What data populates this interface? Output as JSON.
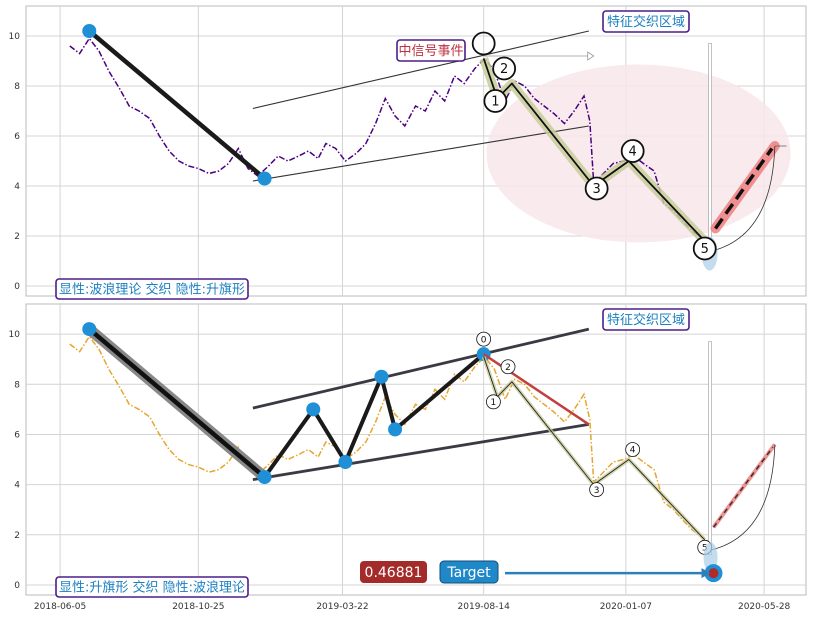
{
  "chart_data": [
    {
      "type": "line",
      "panel": "top",
      "ylim": [
        -0.4,
        11.2
      ],
      "yticks": [
        0,
        2,
        4,
        6,
        8,
        10
      ],
      "grid": true,
      "series": [
        {
          "color": "#4b0082",
          "style": "dash-dot",
          "points": [
            [
              "2018-06-15",
              9.6
            ],
            [
              "2018-06-25",
              9.3
            ],
            [
              "2018-07-05",
              9.9
            ],
            [
              "2018-07-15",
              9.4
            ],
            [
              "2018-07-25",
              8.6
            ],
            [
              "2018-08-05",
              7.9
            ],
            [
              "2018-08-15",
              7.2
            ],
            [
              "2018-08-25",
              7.0
            ],
            [
              "2018-09-05",
              6.7
            ],
            [
              "2018-09-15",
              6.0
            ],
            [
              "2018-09-25",
              5.4
            ],
            [
              "2018-10-05",
              5.0
            ],
            [
              "2018-10-15",
              4.8
            ],
            [
              "2018-10-25",
              4.7
            ],
            [
              "2018-11-05",
              4.5
            ],
            [
              "2018-11-15",
              4.6
            ],
            [
              "2018-11-25",
              4.9
            ],
            [
              "2018-12-05",
              5.5
            ],
            [
              "2018-12-15",
              4.7
            ],
            [
              "2018-12-25",
              4.4
            ],
            [
              "2019-01-05",
              4.8
            ],
            [
              "2019-01-15",
              5.2
            ],
            [
              "2019-01-25",
              5.0
            ],
            [
              "2019-02-05",
              5.2
            ],
            [
              "2019-02-15",
              5.4
            ],
            [
              "2019-02-25",
              5.1
            ],
            [
              "2019-03-05",
              5.7
            ],
            [
              "2019-03-15",
              5.5
            ],
            [
              "2019-03-25",
              5.0
            ],
            [
              "2019-04-05",
              5.3
            ],
            [
              "2019-04-15",
              5.7
            ],
            [
              "2019-04-25",
              6.5
            ],
            [
              "2019-05-05",
              7.5
            ],
            [
              "2019-05-15",
              6.8
            ],
            [
              "2019-05-25",
              6.4
            ],
            [
              "2019-06-05",
              7.2
            ],
            [
              "2019-06-15",
              7.0
            ],
            [
              "2019-06-25",
              7.8
            ],
            [
              "2019-07-05",
              7.4
            ],
            [
              "2019-07-15",
              8.4
            ],
            [
              "2019-07-25",
              8.1
            ],
            [
              "2019-08-05",
              8.7
            ],
            [
              "2019-08-15",
              9.1
            ],
            [
              "2019-08-25",
              8.6
            ],
            [
              "2019-09-05",
              7.4
            ],
            [
              "2019-09-15",
              8.2
            ],
            [
              "2019-09-25",
              8.0
            ],
            [
              "2019-10-05",
              7.5
            ],
            [
              "2019-10-15",
              7.2
            ],
            [
              "2019-10-25",
              6.9
            ],
            [
              "2019-11-05",
              6.5
            ],
            [
              "2019-11-15",
              7.0
            ],
            [
              "2019-11-25",
              7.6
            ],
            [
              "2019-12-01",
              6.6
            ],
            [
              "2019-12-05",
              4.1
            ],
            [
              "2019-12-15",
              4.5
            ],
            [
              "2019-12-25",
              4.9
            ],
            [
              "2020-01-05",
              5.0
            ],
            [
              "2020-01-15",
              5.2
            ],
            [
              "2020-01-25",
              4.9
            ],
            [
              "2020-02-05",
              4.6
            ],
            [
              "2020-02-15",
              3.3
            ],
            [
              "2020-02-25",
              3.0
            ],
            [
              "2020-03-05",
              2.6
            ],
            [
              "2020-03-15",
              2.2
            ],
            [
              "2020-03-25",
              1.9
            ],
            [
              "2020-04-02",
              1.7
            ]
          ]
        }
      ],
      "annotations": {
        "wave_labels": [
          "1",
          "2",
          "3",
          "4",
          "5"
        ],
        "event_label": "中信号事件",
        "zone_label": "特征交织区域",
        "footer_label": "显性:波浪理论 交织 隐性:升旗形"
      }
    },
    {
      "type": "line",
      "panel": "bottom",
      "ylim": [
        -0.4,
        11.2
      ],
      "yticks": [
        0,
        2,
        4,
        6,
        8,
        10
      ],
      "grid": true,
      "xticks": [
        "2018-06-05",
        "2018-10-25",
        "2019-03-22",
        "2019-08-14",
        "2020-01-07",
        "2020-05-28"
      ],
      "series": [
        {
          "color": "#e6a62e",
          "style": "dash-dot",
          "points": [
            [
              "2018-06-15",
              9.6
            ],
            [
              "2018-06-25",
              9.3
            ],
            [
              "2018-07-05",
              9.9
            ],
            [
              "2018-07-15",
              9.4
            ],
            [
              "2018-07-25",
              8.6
            ],
            [
              "2018-08-05",
              7.9
            ],
            [
              "2018-08-15",
              7.2
            ],
            [
              "2018-08-25",
              7.0
            ],
            [
              "2018-09-05",
              6.7
            ],
            [
              "2018-09-15",
              6.0
            ],
            [
              "2018-09-25",
              5.4
            ],
            [
              "2018-10-05",
              5.0
            ],
            [
              "2018-10-15",
              4.8
            ],
            [
              "2018-10-25",
              4.7
            ],
            [
              "2018-11-05",
              4.5
            ],
            [
              "2018-11-15",
              4.6
            ],
            [
              "2018-11-25",
              4.9
            ],
            [
              "2018-12-05",
              5.5
            ],
            [
              "2018-12-15",
              4.7
            ],
            [
              "2018-12-25",
              4.4
            ],
            [
              "2019-01-05",
              4.8
            ],
            [
              "2019-01-15",
              5.2
            ],
            [
              "2019-01-25",
              5.0
            ],
            [
              "2019-02-05",
              5.2
            ],
            [
              "2019-02-15",
              5.4
            ],
            [
              "2019-02-25",
              5.1
            ],
            [
              "2019-03-05",
              5.7
            ],
            [
              "2019-03-15",
              5.5
            ],
            [
              "2019-03-25",
              5.0
            ],
            [
              "2019-04-05",
              5.3
            ],
            [
              "2019-04-15",
              5.7
            ],
            [
              "2019-04-25",
              6.5
            ],
            [
              "2019-05-05",
              7.5
            ],
            [
              "2019-05-15",
              6.8
            ],
            [
              "2019-05-25",
              6.4
            ],
            [
              "2019-06-05",
              7.2
            ],
            [
              "2019-06-15",
              7.0
            ],
            [
              "2019-06-25",
              7.8
            ],
            [
              "2019-07-05",
              7.4
            ],
            [
              "2019-07-15",
              8.4
            ],
            [
              "2019-07-25",
              8.1
            ],
            [
              "2019-08-05",
              8.7
            ],
            [
              "2019-08-15",
              9.1
            ],
            [
              "2019-08-25",
              8.6
            ],
            [
              "2019-09-05",
              7.4
            ],
            [
              "2019-09-15",
              8.2
            ],
            [
              "2019-09-25",
              8.0
            ],
            [
              "2019-10-05",
              7.5
            ],
            [
              "2019-10-15",
              7.2
            ],
            [
              "2019-10-25",
              6.9
            ],
            [
              "2019-11-05",
              6.5
            ],
            [
              "2019-11-15",
              7.0
            ],
            [
              "2019-11-25",
              7.6
            ],
            [
              "2019-12-01",
              6.6
            ],
            [
              "2019-12-05",
              4.1
            ],
            [
              "2019-12-15",
              4.5
            ],
            [
              "2019-12-25",
              4.9
            ],
            [
              "2020-01-05",
              5.0
            ],
            [
              "2020-01-15",
              5.2
            ],
            [
              "2020-01-25",
              4.9
            ],
            [
              "2020-02-05",
              4.6
            ],
            [
              "2020-02-15",
              3.3
            ],
            [
              "2020-02-25",
              3.0
            ],
            [
              "2020-03-05",
              2.6
            ],
            [
              "2020-03-15",
              2.2
            ],
            [
              "2020-03-25",
              1.9
            ],
            [
              "2020-04-02",
              1.7
            ]
          ]
        }
      ],
      "annotations": {
        "wave_labels": [
          "0",
          "1",
          "2",
          "3",
          "4",
          "5"
        ],
        "zone_label": "特征交织区域",
        "value_badge": "0.46881",
        "target_label": "Target",
        "footer_label": "显性:升旗形 交织 隐性:波浪理论"
      }
    }
  ],
  "colors": {
    "purple_line": "#4b0082",
    "orange_line": "#e6a62e",
    "marker_blue": "#1f8fd6",
    "zone_pink": "#f8e6ea",
    "arrow_red": "#f08080",
    "badge_red": "#a52a2a",
    "label_blue": "#1a7fc1",
    "box_border": "#4b1d8a"
  }
}
